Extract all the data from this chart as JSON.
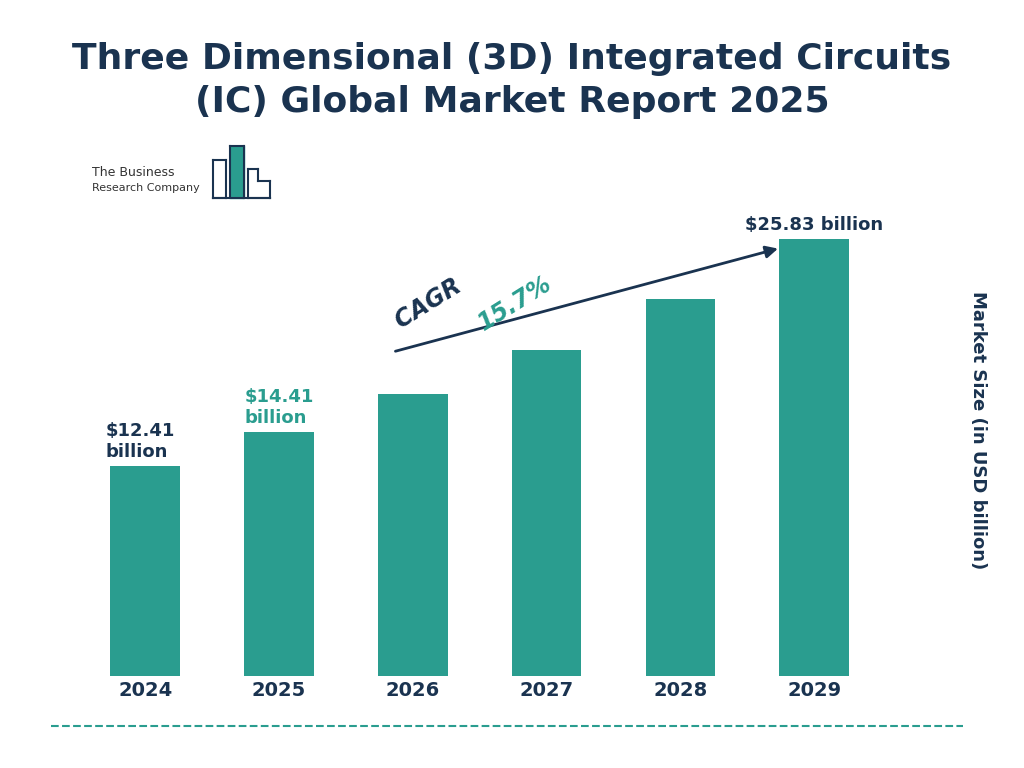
{
  "title": "Three Dimensional (3D) Integrated Circuits\n(IC) Global Market Report 2025",
  "years": [
    "2024",
    "2025",
    "2026",
    "2027",
    "2028",
    "2029"
  ],
  "values": [
    12.41,
    14.41,
    16.67,
    19.28,
    22.31,
    25.83
  ],
  "bar_color": "#2a9d8f",
  "ylabel": "Market Size (in USD billion)",
  "cagr_color": "#2a9d8f",
  "title_color": "#1a3350",
  "background_color": "#ffffff",
  "bottom_line_color": "#2a9d8f",
  "ylim": [
    0,
    30
  ],
  "title_fontsize": 26,
  "ylabel_fontsize": 13,
  "tick_fontsize": 14
}
